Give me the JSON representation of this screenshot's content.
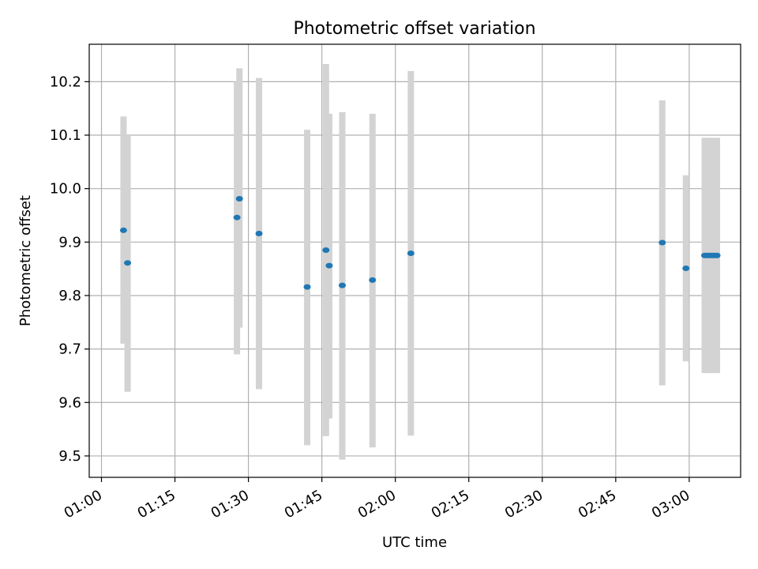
{
  "chart_data": {
    "type": "scatter",
    "title": "Photometric offset variation",
    "xlabel": "UTC time",
    "ylabel": "Photometric offset",
    "xlim": [
      "00:57:30",
      "03:10:30"
    ],
    "ylim": [
      9.46,
      10.27
    ],
    "grid": true,
    "xticks": [
      "01:00",
      "01:15",
      "01:30",
      "01:45",
      "02:00",
      "02:15",
      "02:30",
      "02:45",
      "03:00"
    ],
    "yticks": [
      "9.5",
      "9.6",
      "9.7",
      "9.8",
      "9.9",
      "10.0",
      "10.1",
      "10.2"
    ],
    "colors": {
      "point": "#1f77b4",
      "error_band": "#d3d3d3",
      "grid": "#b0b0b0"
    },
    "series": [
      {
        "points": [
          {
            "x": "01:04:30",
            "y": 9.922,
            "low": 9.71,
            "high": 10.135
          },
          {
            "x": "01:05:20",
            "y": 9.861,
            "low": 9.62,
            "high": 10.1
          },
          {
            "x": "01:27:40",
            "y": 9.946,
            "low": 9.69,
            "high": 10.2
          },
          {
            "x": "01:28:10",
            "y": 9.981,
            "low": 9.74,
            "high": 10.225
          },
          {
            "x": "01:32:10",
            "y": 9.916,
            "low": 9.625,
            "high": 10.207
          },
          {
            "x": "01:42:00",
            "y": 9.816,
            "low": 9.52,
            "high": 10.11
          },
          {
            "x": "01:45:50",
            "y": 9.885,
            "low": 9.537,
            "high": 10.233
          },
          {
            "x": "01:46:30",
            "y": 9.856,
            "low": 9.57,
            "high": 10.14
          },
          {
            "x": "01:49:10",
            "y": 9.819,
            "low": 9.493,
            "high": 10.143
          },
          {
            "x": "01:55:20",
            "y": 9.829,
            "low": 9.516,
            "high": 10.14
          },
          {
            "x": "02:03:10",
            "y": 9.879,
            "low": 9.538,
            "high": 10.22
          },
          {
            "x": "02:54:30",
            "y": 9.899,
            "low": 9.632,
            "high": 10.165
          },
          {
            "x": "02:59:20",
            "y": 9.851,
            "low": 9.677,
            "high": 10.025
          },
          {
            "x": "03:03:10",
            "y": 9.875,
            "low": 9.655,
            "high": 10.095
          },
          {
            "x": "03:03:40",
            "y": 9.875,
            "low": 9.655,
            "high": 10.095
          },
          {
            "x": "03:04:10",
            "y": 9.875,
            "low": 9.655,
            "high": 10.095
          },
          {
            "x": "03:04:40",
            "y": 9.875,
            "low": 9.655,
            "high": 10.095
          },
          {
            "x": "03:05:10",
            "y": 9.875,
            "low": 9.655,
            "high": 10.095
          },
          {
            "x": "03:05:40",
            "y": 9.875,
            "low": 9.655,
            "high": 10.095
          }
        ]
      }
    ]
  }
}
